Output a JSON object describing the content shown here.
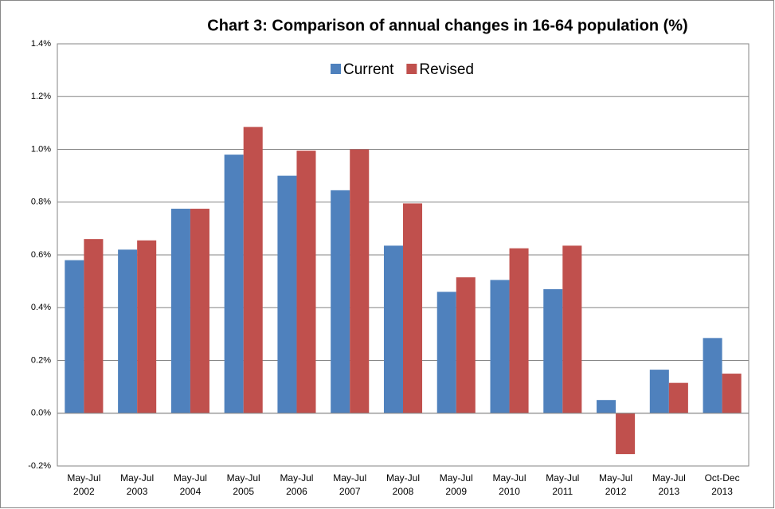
{
  "chart_data": {
    "type": "bar",
    "title": "Chart 3: Comparison of annual changes in 16-64 population (%)",
    "categories": [
      "May-Jul 2002",
      "May-Jul 2003",
      "May-Jul 2004",
      "May-Jul 2005",
      "May-Jul 2006",
      "May-Jul 2007",
      "May-Jul 2008",
      "May-Jul 2009",
      "May-Jul 2010",
      "May-Jul 2011",
      "May-Jul 2012",
      "May-Jul 2013",
      "Oct-Dec 2013"
    ],
    "series": [
      {
        "name": "Current",
        "color": "#4f81bd",
        "values": [
          0.58,
          0.62,
          0.775,
          0.98,
          0.9,
          0.845,
          0.635,
          0.46,
          0.505,
          0.47,
          0.05,
          0.165,
          0.285
        ]
      },
      {
        "name": "Revised",
        "color": "#c0504d",
        "values": [
          0.66,
          0.655,
          0.775,
          1.085,
          0.995,
          1.0,
          0.795,
          0.515,
          0.625,
          0.635,
          -0.155,
          0.115,
          0.15
        ]
      }
    ],
    "ylim": [
      -0.2,
      1.4
    ],
    "yticks": [
      {
        "value": -0.2,
        "label": "-0.2%"
      },
      {
        "value": 0,
        "label": "0.0%"
      },
      {
        "value": 0.2,
        "label": "0.2%"
      },
      {
        "value": 0.4,
        "label": "0.4%"
      },
      {
        "value": 0.6,
        "label": "0.6%"
      },
      {
        "value": 0.8,
        "label": "0.8%"
      },
      {
        "value": 1.0,
        "label": "1.0%"
      },
      {
        "value": 1.2,
        "label": "1.2%"
      },
      {
        "value": 1.4,
        "label": "1.4%"
      }
    ],
    "grid": true
  }
}
